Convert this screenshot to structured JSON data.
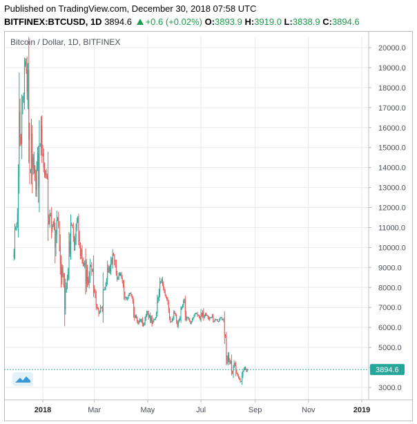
{
  "header": {
    "published": "Published on TradingView.com, December 30, 2018 07:58 UTC",
    "symbol": "BITFINEX:BTCUSD, 1D",
    "last": "3894.6",
    "change": "+0.6 (+0.02%)",
    "o_label": "O:",
    "o_value": "3893.9",
    "h_label": "H:",
    "h_value": "3919.0",
    "l_label": "L:",
    "l_value": "3838.9",
    "c_label": "C:",
    "c_value": "3894.6"
  },
  "chart_data": {
    "type": "candlestick",
    "title": "Bitcoin / Dollar, 1D, BITFINEX",
    "ylim": [
      2500,
      20500
    ],
    "yticks": [
      "3000.0",
      "4000.0",
      "5000.0",
      "6000.0",
      "7000.0",
      "8000.0",
      "9000.0",
      "10000.0",
      "11000.0",
      "12000.0",
      "13000.0",
      "14000.0",
      "15000.0",
      "16000.0",
      "17000.0",
      "18000.0",
      "19000.0",
      "20000.0"
    ],
    "xticks": [
      "2018",
      "Mar",
      "May",
      "Jul",
      "Sep",
      "Nov",
      "2019"
    ],
    "grid": true,
    "last_price_label": "3894.6",
    "last_price": 3894.6,
    "colors": {
      "up": "#26a69a",
      "down": "#ef5350",
      "grid": "#e6e9ee",
      "last": "#26a69a"
    },
    "start_date": "2017-11-29",
    "closes": [
      9800,
      10900,
      11000,
      11200,
      11700,
      13500,
      16800,
      15500,
      15200,
      16800,
      17400,
      17600,
      19100,
      19300,
      18900,
      17800,
      18900,
      15400,
      13800,
      13900,
      15700,
      14000,
      14500,
      13900,
      13500,
      12900,
      14000,
      14700,
      13000,
      15100,
      15100,
      16100,
      15000,
      14700,
      14000,
      13600,
      13800,
      13600,
      13500,
      11500,
      11200,
      11700,
      11600,
      10900,
      11100,
      11300,
      11000,
      10000,
      10600,
      11400,
      11500,
      11100,
      10100,
      9200,
      8500,
      9000,
      8600,
      8100,
      6900,
      7800,
      8100,
      8500,
      8900,
      10300,
      9700,
      11200,
      11100,
      11000,
      10500,
      10100,
      10500,
      11000,
      11300,
      11500,
      10700,
      10100,
      9600,
      9900,
      9400,
      9200,
      9100,
      9300,
      8200,
      8900,
      8400,
      8200,
      8600,
      9100,
      9100,
      8800,
      8900,
      8000,
      7800,
      7600,
      7100,
      7000,
      6900,
      6700,
      6800,
      7000,
      7000,
      6800,
      7900,
      7900,
      8000,
      8200,
      8400,
      9000,
      8800,
      9000,
      8800,
      9400,
      9200,
      9700,
      9600,
      9300,
      9100,
      8700,
      8400,
      8500,
      8700,
      8600,
      8700,
      8500,
      8300,
      8100,
      7700,
      7500,
      7500,
      7400,
      7500,
      7600,
      7700,
      7700,
      7600,
      7500,
      7300,
      6800,
      6500,
      6600,
      6500,
      6300,
      6200,
      6300,
      6400,
      6300,
      6400,
      6200,
      6100,
      6200,
      6400,
      6600,
      6800,
      6700,
      6500,
      6600,
      6300,
      6500,
      6200,
      6300,
      6400,
      6400,
      6500,
      6700,
      7300,
      7500,
      7800,
      8200,
      8300,
      8400,
      8200,
      8000,
      7800,
      7600,
      7500,
      7400,
      7200,
      6900,
      6500,
      6300,
      6300,
      6400,
      6500,
      6800,
      6700,
      6600,
      6300,
      6100,
      6300,
      6400,
      6500,
      6900,
      7000,
      7100,
      7300,
      7400,
      6700,
      6400,
      6500,
      6500,
      6400,
      6300,
      6200,
      6300,
      6400,
      6500,
      6600,
      6700,
      6700,
      6700,
      6600,
      6600,
      6500,
      6400,
      6700,
      6600,
      6800,
      6500,
      6600,
      6700,
      6600,
      6600,
      6500,
      6400,
      6500,
      6500,
      6500,
      6600,
      6300,
      6300,
      6400,
      6400,
      6400,
      6300,
      6300,
      6400,
      6500,
      6500,
      6400,
      6400,
      6300,
      5600,
      5500,
      4500,
      4300,
      4600,
      4400,
      4200,
      4300,
      3800,
      3700,
      4000,
      4200,
      4100,
      3800,
      3700,
      3600,
      3500,
      3400,
      3300,
      3300,
      3600,
      3800,
      3900,
      4000,
      3900,
      3800,
      3900,
      3900
    ]
  }
}
